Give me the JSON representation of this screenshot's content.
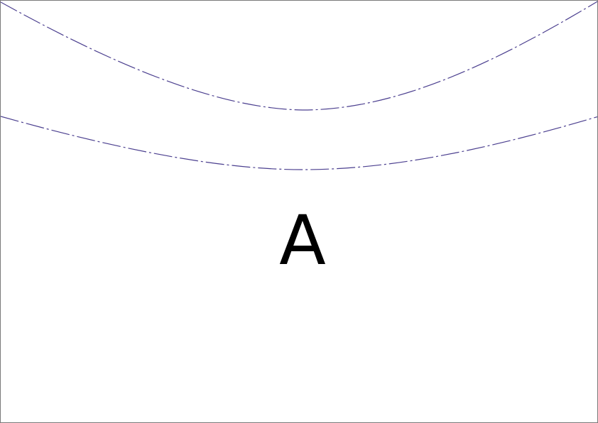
{
  "diagram": {
    "label": "A",
    "curves": [
      {
        "name": "upper-curve",
        "style": "dash-dot"
      },
      {
        "name": "lower-curve",
        "style": "dash-dot"
      }
    ],
    "colors": {
      "curve": "#4b3f8f",
      "label": "#000000",
      "border": "#7a7a7a",
      "background": "#ffffff"
    }
  }
}
